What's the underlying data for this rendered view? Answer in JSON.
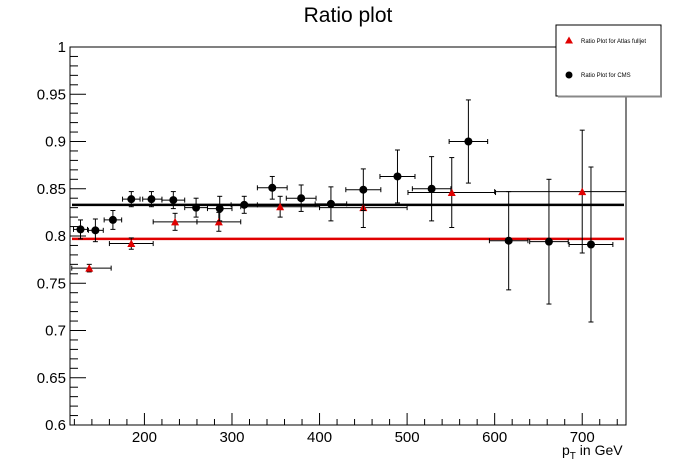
{
  "chart_data": {
    "type": "scatter",
    "title": "Ratio plot",
    "xlabel": "p_T in GeV",
    "xlabel_main": "p",
    "xlabel_sub": "T",
    "xlabel_rest": " in GeV",
    "ylabel": "",
    "xlim": [
      115,
      750
    ],
    "ylim": [
      0.6,
      1.0
    ],
    "x_ticks": [
      200,
      300,
      400,
      500,
      600,
      700
    ],
    "y_ticks": [
      0.6,
      0.65,
      0.7,
      0.75,
      0.8,
      0.85,
      0.9,
      0.95,
      1.0
    ],
    "y_tick_labels": [
      "0.6",
      "0.65",
      "0.7",
      "0.75",
      "0.8",
      "0.85",
      "0.9",
      "0.95",
      "1"
    ],
    "grid": false,
    "legend_position": "top-right",
    "series": [
      {
        "name": "Ratio Plot for Atlas fulljet",
        "color": "#e00000",
        "marker": "triangle",
        "fit_value": 0.797,
        "points": [
          {
            "x": 137,
            "y": 0.766,
            "xerr_lo": 20,
            "xerr_hi": 25,
            "yerr": 0.004
          },
          {
            "x": 185,
            "y": 0.792,
            "xerr_lo": 25,
            "xerr_hi": 25,
            "yerr": 0.006
          },
          {
            "x": 235,
            "y": 0.815,
            "xerr_lo": 25,
            "xerr_hi": 25,
            "yerr": 0.009
          },
          {
            "x": 285,
            "y": 0.815,
            "xerr_lo": 25,
            "xerr_hi": 25,
            "yerr": 0.01
          },
          {
            "x": 355,
            "y": 0.831,
            "xerr_lo": 45,
            "xerr_hi": 45,
            "yerr": 0.011
          },
          {
            "x": 450,
            "y": 0.83,
            "xerr_lo": 50,
            "xerr_hi": 50,
            "yerr": 0.021
          },
          {
            "x": 551,
            "y": 0.846,
            "xerr_lo": 50,
            "xerr_hi": 50,
            "yerr": 0.037
          },
          {
            "x": 700,
            "y": 0.847,
            "xerr_lo": 100,
            "xerr_hi": 50,
            "yerr": 0.065
          }
        ]
      },
      {
        "name": "Ratio Plot for CMS",
        "color": "#000000",
        "marker": "circle",
        "fit_value": 0.833,
        "points": [
          {
            "x": 127,
            "y": 0.807,
            "xerr_lo": 8,
            "xerr_hi": 8,
            "yerr": 0.01
          },
          {
            "x": 144,
            "y": 0.806,
            "xerr_lo": 8,
            "xerr_hi": 9,
            "yerr": 0.012
          },
          {
            "x": 164,
            "y": 0.817,
            "xerr_lo": 10,
            "xerr_hi": 10,
            "yerr": 0.01
          },
          {
            "x": 185,
            "y": 0.839,
            "xerr_lo": 10,
            "xerr_hi": 10,
            "yerr": 0.008
          },
          {
            "x": 208,
            "y": 0.839,
            "xerr_lo": 10,
            "xerr_hi": 12,
            "yerr": 0.008
          },
          {
            "x": 233,
            "y": 0.838,
            "xerr_lo": 13,
            "xerr_hi": 13,
            "yerr": 0.009
          },
          {
            "x": 259,
            "y": 0.83,
            "xerr_lo": 13,
            "xerr_hi": 13,
            "yerr": 0.01
          },
          {
            "x": 286,
            "y": 0.829,
            "xerr_lo": 14,
            "xerr_hi": 14,
            "yerr": 0.013
          },
          {
            "x": 314,
            "y": 0.833,
            "xerr_lo": 15,
            "xerr_hi": 15,
            "yerr": 0.009
          },
          {
            "x": 346,
            "y": 0.851,
            "xerr_lo": 17,
            "xerr_hi": 17,
            "yerr": 0.012
          },
          {
            "x": 379,
            "y": 0.84,
            "xerr_lo": 17,
            "xerr_hi": 17,
            "yerr": 0.014
          },
          {
            "x": 413,
            "y": 0.834,
            "xerr_lo": 18,
            "xerr_hi": 18,
            "yerr": 0.018
          },
          {
            "x": 450,
            "y": 0.849,
            "xerr_lo": 20,
            "xerr_hi": 20,
            "yerr": 0.022
          },
          {
            "x": 489,
            "y": 0.863,
            "xerr_lo": 20,
            "xerr_hi": 20,
            "yerr": 0.028
          },
          {
            "x": 528,
            "y": 0.85,
            "xerr_lo": 22,
            "xerr_hi": 22,
            "yerr": 0.034
          },
          {
            "x": 570,
            "y": 0.9,
            "xerr_lo": 22,
            "xerr_hi": 22,
            "yerr": 0.044
          },
          {
            "x": 616,
            "y": 0.795,
            "xerr_lo": 22,
            "xerr_hi": 22,
            "yerr": 0.052
          },
          {
            "x": 662,
            "y": 0.794,
            "xerr_lo": 22,
            "xerr_hi": 22,
            "yerr": 0.066
          },
          {
            "x": 710,
            "y": 0.791,
            "xerr_lo": 25,
            "xerr_hi": 25,
            "yerr": 0.082
          }
        ]
      }
    ]
  },
  "legend": {
    "entries": [
      {
        "label": "Ratio Plot for Atlas fulljet",
        "color": "#e00000",
        "marker": "triangle"
      },
      {
        "label": "Ratio Plot for CMS",
        "color": "#000000",
        "marker": "circle"
      }
    ]
  }
}
